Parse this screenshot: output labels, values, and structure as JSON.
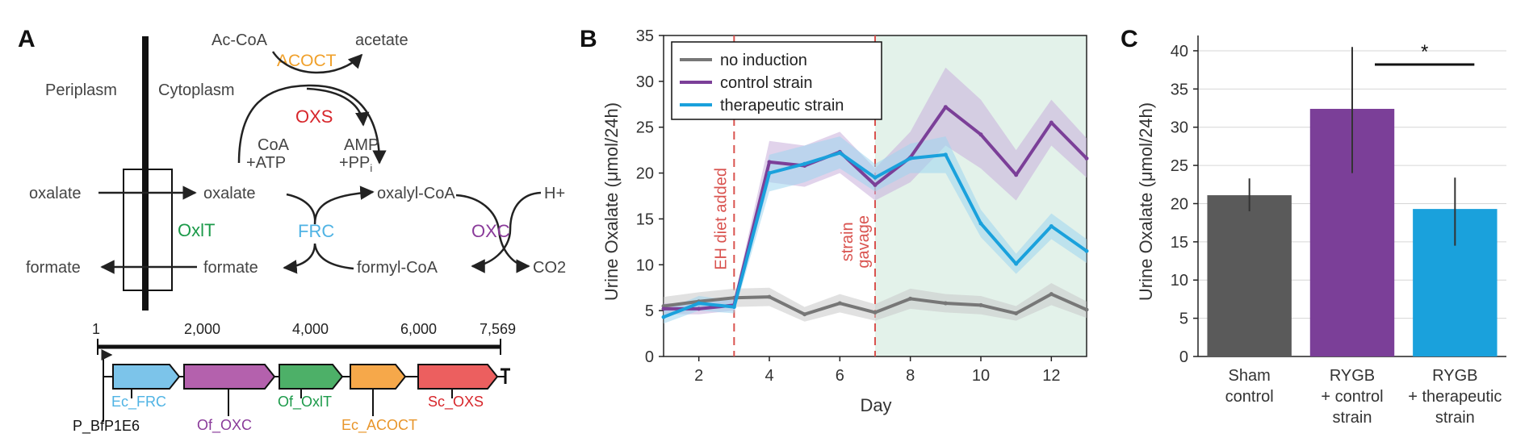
{
  "panels": {
    "a": "A",
    "b": "B",
    "c": "C"
  },
  "colors": {
    "grey": "#555555",
    "purple": "#7b3f98",
    "blue": "#1aa1dc",
    "red_dash": "#d9534f",
    "green_bg": "#e3f2ea",
    "orange": "#f0a02a",
    "enz_red": "#d7262b",
    "enz_green": "#1c9a4a",
    "enz_blue": "#4fb3e4",
    "enz_purple": "#8a3b9a",
    "gene_blue": "#7cc4ea",
    "gene_purple": "#b461ad",
    "gene_green": "#4db068",
    "gene_orange": "#f6a84a",
    "gene_red": "#ec5f5f"
  },
  "pathway": {
    "periplasm": "Periplasm",
    "cytoplasm": "Cytoplasm",
    "oxalate_out": "oxalate",
    "formate_out": "formate",
    "oxalate_in": "oxalate",
    "formate_in": "formate",
    "transporter": "OxlT",
    "ac_coa": "Ac-CoA",
    "acetate": "acetate",
    "acoct": "ACOCT",
    "oxs": "OXS",
    "coa": "CoA",
    "atp": "+ATP",
    "amp": "AMP",
    "ppi_base": "+PP",
    "ppi_sub": "i",
    "oxalyl_coa": "oxalyl-CoA",
    "frc": "FRC",
    "formyl_coa": "formyl-CoA",
    "oxc": "OXC",
    "h_plus": "H+",
    "co2": "CO2"
  },
  "genome": {
    "ticks": [
      "1",
      "2,000",
      "4,000",
      "6,000",
      "7,569"
    ],
    "promoter": "P_BfP1E6",
    "genes": [
      "Ec_FRC",
      "Of_OXC",
      "Of_OxlT",
      "Ec_ACOCT",
      "Sc_OXS"
    ]
  },
  "chart_data": [
    {
      "type": "line",
      "ylabel": "Urine Oxalate (μmol/24h)",
      "xlabel": "Day",
      "xlim": [
        1,
        13
      ],
      "ylim": [
        0,
        35
      ],
      "xticks": [
        "2",
        "4",
        "6",
        "8",
        "10",
        "12"
      ],
      "yticks": [
        "0",
        "5",
        "10",
        "15",
        "20",
        "25",
        "30",
        "35"
      ],
      "legend": [
        "no induction",
        "control strain",
        "therapeutic strain"
      ],
      "annotations": [
        "EH diet added",
        "strain",
        "gavage"
      ],
      "annotation_days": [
        3,
        7
      ],
      "shaded_from_day": 7,
      "x": [
        1,
        2,
        3,
        4,
        5,
        6,
        7,
        8,
        9,
        10,
        11,
        12,
        13
      ],
      "series": [
        {
          "name": "no induction",
          "values": [
            5.5,
            6.0,
            6.4,
            6.5,
            4.6,
            5.8,
            4.8,
            6.3,
            5.8,
            5.6,
            4.7,
            6.8,
            5.1
          ],
          "lower": [
            4.5,
            5.0,
            5.4,
            5.5,
            3.8,
            4.8,
            3.9,
            5.2,
            4.8,
            4.6,
            3.9,
            5.6,
            4.2
          ],
          "upper": [
            6.5,
            7.0,
            7.4,
            7.5,
            5.4,
            6.8,
            5.7,
            7.4,
            6.8,
            6.6,
            5.5,
            8.0,
            6.0
          ]
        },
        {
          "name": "control strain",
          "values": [
            5.2,
            5.2,
            5.6,
            21.2,
            20.8,
            22.3,
            18.7,
            21.7,
            27.2,
            24.2,
            19.8,
            25.5,
            21.6
          ],
          "lower": [
            4.6,
            4.6,
            5.0,
            19.0,
            18.5,
            20.0,
            17.0,
            19.0,
            23.0,
            20.5,
            17.0,
            23.0,
            19.5
          ],
          "upper": [
            5.8,
            5.8,
            6.2,
            23.5,
            23.0,
            24.5,
            20.5,
            24.5,
            31.5,
            28.0,
            22.5,
            28.0,
            23.8
          ]
        },
        {
          "name": "therapeutic strain",
          "values": [
            4.3,
            5.8,
            5.4,
            20.0,
            21.0,
            22.2,
            19.5,
            21.6,
            22.0,
            14.5,
            10.1,
            14.2,
            11.5
          ],
          "lower": [
            3.6,
            5.0,
            4.7,
            18.0,
            19.0,
            20.5,
            18.0,
            20.0,
            20.0,
            13.0,
            9.0,
            12.8,
            10.2
          ],
          "upper": [
            5.0,
            6.6,
            6.1,
            22.0,
            23.0,
            24.0,
            21.0,
            23.2,
            24.0,
            16.0,
            11.2,
            15.6,
            12.8
          ]
        }
      ]
    },
    {
      "type": "bar",
      "ylabel": "Urine Oxalate (μmol/24h)",
      "ylim": [
        0,
        42
      ],
      "yticks": [
        "0",
        "5",
        "10",
        "15",
        "20",
        "25",
        "30",
        "35",
        "40"
      ],
      "categories": [
        [
          "Sham",
          "control"
        ],
        [
          "RYGB",
          "+ control",
          "strain"
        ],
        [
          "RYGB",
          "+ therapeutic",
          "strain"
        ]
      ],
      "values": [
        21.1,
        32.4,
        19.3
      ],
      "err_lower": [
        19.0,
        24.0,
        14.5
      ],
      "err_upper": [
        23.3,
        40.5,
        23.4
      ],
      "significance": {
        "label": "*",
        "between": [
          1,
          2
        ]
      }
    }
  ]
}
